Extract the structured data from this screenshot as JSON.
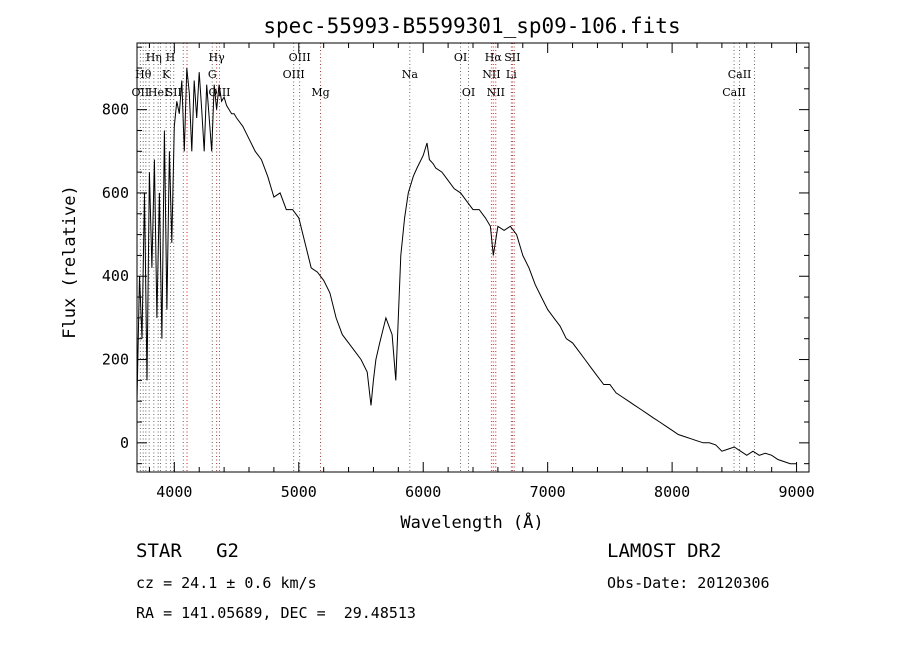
{
  "chart_data": {
    "type": "line",
    "title": "spec-55993-B5599301_sp09-106.fits",
    "xlabel": "Wavelength (Å)",
    "ylabel": "Flux (relative)",
    "xlim": [
      3700,
      9100
    ],
    "ylim": [
      -70,
      960
    ],
    "xticks": [
      4000,
      5000,
      6000,
      7000,
      8000,
      9000
    ],
    "yticks": [
      0,
      200,
      400,
      600,
      800
    ],
    "grid": false,
    "series": [
      {
        "x": [
          3700,
          3720,
          3740,
          3760,
          3780,
          3800,
          3820,
          3840,
          3860,
          3880,
          3900,
          3920,
          3940,
          3960,
          3980,
          4000,
          4020,
          4040,
          4060,
          4080,
          4100,
          4120,
          4140,
          4160,
          4180,
          4200,
          4220,
          4240,
          4260,
          4280,
          4300,
          4320,
          4340,
          4360,
          4380,
          4400,
          4420,
          4440,
          4460,
          4480,
          4500,
          4550,
          4600,
          4650,
          4700,
          4750,
          4800,
          4850,
          4900,
          4950,
          5000,
          5050,
          5100,
          5150,
          5200,
          5250,
          5300,
          5350,
          5400,
          5450,
          5500,
          5550,
          5580,
          5600,
          5620,
          5650,
          5700,
          5750,
          5780,
          5800,
          5820,
          5850,
          5880,
          5900,
          5920,
          5950,
          6000,
          6030,
          6050,
          6080,
          6100,
          6150,
          6200,
          6250,
          6300,
          6350,
          6400,
          6450,
          6500,
          6540,
          6563,
          6600,
          6650,
          6700,
          6750,
          6800,
          6850,
          6900,
          6950,
          7000,
          7050,
          7100,
          7150,
          7200,
          7250,
          7300,
          7350,
          7400,
          7450,
          7500,
          7550,
          7600,
          7650,
          7700,
          7750,
          7800,
          7850,
          7900,
          7950,
          8000,
          8050,
          8100,
          8150,
          8200,
          8250,
          8300,
          8350,
          8400,
          8450,
          8500,
          8550,
          8600,
          8650,
          8700,
          8750,
          8800,
          8850,
          8900,
          8950,
          9000
        ],
        "y": [
          100,
          400,
          250,
          600,
          150,
          650,
          420,
          680,
          300,
          600,
          250,
          750,
          320,
          700,
          480,
          760,
          820,
          790,
          870,
          700,
          900,
          840,
          700,
          870,
          780,
          890,
          800,
          700,
          860,
          780,
          700,
          860,
          800,
          860,
          820,
          830,
          810,
          800,
          790,
          790,
          780,
          760,
          730,
          700,
          680,
          640,
          590,
          600,
          560,
          560,
          540,
          480,
          420,
          410,
          390,
          360,
          300,
          260,
          240,
          220,
          200,
          170,
          90,
          150,
          200,
          240,
          300,
          260,
          150,
          300,
          450,
          540,
          600,
          620,
          640,
          660,
          690,
          720,
          680,
          670,
          660,
          650,
          630,
          610,
          600,
          580,
          560,
          560,
          540,
          520,
          450,
          520,
          510,
          520,
          500,
          450,
          420,
          380,
          350,
          320,
          300,
          280,
          250,
          240,
          220,
          200,
          180,
          160,
          140,
          140,
          120,
          110,
          100,
          90,
          80,
          70,
          60,
          50,
          40,
          30,
          20,
          15,
          10,
          5,
          0,
          0,
          -5,
          -20,
          -15,
          -10,
          -20,
          -30,
          -20,
          -30,
          -25,
          -30,
          -40,
          -45,
          -50,
          -50
        ]
      }
    ],
    "lines": [
      {
        "wl": 3727,
        "label": "OII",
        "row": 3,
        "color": "#666666"
      },
      {
        "wl": 3750,
        "label": "Hθ",
        "row": 2,
        "color": "#666666"
      },
      {
        "wl": 3771,
        "label": "",
        "row": 0,
        "color": "#666666"
      },
      {
        "wl": 3798,
        "label": "",
        "row": 0,
        "color": "#666666"
      },
      {
        "wl": 3835,
        "label": "Hη",
        "row": 1,
        "color": "#666666"
      },
      {
        "wl": 3870,
        "label": "HeI",
        "row": 3,
        "color": "#666666"
      },
      {
        "wl": 3889,
        "label": "",
        "row": 0,
        "color": "#666666"
      },
      {
        "wl": 3934,
        "label": "K",
        "row": 2,
        "color": "#666666"
      },
      {
        "wl": 3969,
        "label": "H",
        "row": 1,
        "color": "#666666"
      },
      {
        "wl": 3995,
        "label": "SII",
        "row": 3,
        "color": "#666666"
      },
      {
        "wl": 4072,
        "label": "",
        "row": 0,
        "color": "#666666"
      },
      {
        "wl": 4102,
        "label": "",
        "row": 0,
        "color": "#cc2222"
      },
      {
        "wl": 4305,
        "label": "G",
        "row": 2,
        "color": "#666666"
      },
      {
        "wl": 4340,
        "label": "Hγ",
        "row": 1,
        "color": "#cc2222"
      },
      {
        "wl": 4363,
        "label": "OIII",
        "row": 3,
        "color": "#666666"
      },
      {
        "wl": 4959,
        "label": "OIII",
        "row": 2,
        "color": "#666666"
      },
      {
        "wl": 5007,
        "label": "OIII",
        "row": 1,
        "color": "#666666"
      },
      {
        "wl": 5175,
        "label": "Mg",
        "row": 3,
        "color": "#cc2222"
      },
      {
        "wl": 5892,
        "label": "Na",
        "row": 2,
        "color": "#666666"
      },
      {
        "wl": 6300,
        "label": "OI",
        "row": 1,
        "color": "#666666"
      },
      {
        "wl": 6364,
        "label": "OI",
        "row": 3,
        "color": "#666666"
      },
      {
        "wl": 6548,
        "label": "NII",
        "row": 2,
        "color": "#666666"
      },
      {
        "wl": 6563,
        "label": "Hα",
        "row": 1,
        "color": "#cc2222"
      },
      {
        "wl": 6583,
        "label": "NII",
        "row": 3,
        "color": "#cc2222"
      },
      {
        "wl": 6708,
        "label": "Li",
        "row": 2,
        "color": "#666666"
      },
      {
        "wl": 6716,
        "label": "SII",
        "row": 1,
        "color": "#cc2222"
      },
      {
        "wl": 6731,
        "label": "",
        "row": 0,
        "color": "#cc2222"
      },
      {
        "wl": 8498,
        "label": "CaII",
        "row": 3,
        "color": "#666666"
      },
      {
        "wl": 8542,
        "label": "CaII",
        "row": 2,
        "color": "#666666"
      },
      {
        "wl": 8662,
        "label": "",
        "row": 0,
        "color": "#666666"
      }
    ]
  },
  "info": {
    "class_label": "STAR   G2",
    "cz": "cz = 24.1 ± 0.6 km/s",
    "radec": "RA = 141.05689, DEC =  29.48513",
    "survey": "LAMOST DR2",
    "obsdate": "Obs-Date: 20120306"
  }
}
